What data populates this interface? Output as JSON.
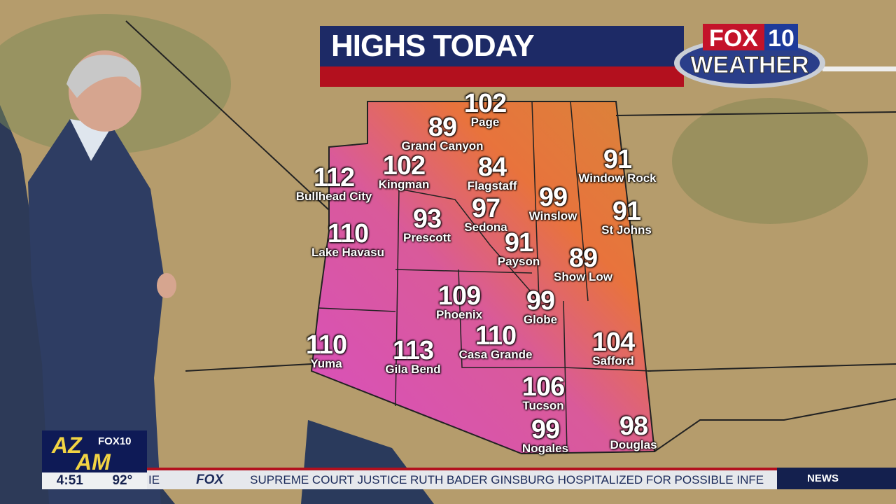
{
  "header": {
    "title": "HIGHS TODAY",
    "logo_text": "FOX 10 WEATHER"
  },
  "colors": {
    "title_blue": "#1d2a66",
    "title_red": "#b3101e",
    "hot": "#d94fbf",
    "warm": "#e87a3c",
    "ticker_bg": "#e6e8ec"
  },
  "cities": [
    {
      "temp": "102",
      "name": "Page"
    },
    {
      "temp": "89",
      "name": "Grand Canyon"
    },
    {
      "temp": "112",
      "name": "Bullhead City"
    },
    {
      "temp": "102",
      "name": "Kingman"
    },
    {
      "temp": "84",
      "name": "Flagstaff"
    },
    {
      "temp": "91",
      "name": "Window Rock"
    },
    {
      "temp": "99",
      "name": "Winslow"
    },
    {
      "temp": "97",
      "name": "Sedona"
    },
    {
      "temp": "93",
      "name": "Prescott"
    },
    {
      "temp": "91",
      "name": "St Johns"
    },
    {
      "temp": "110",
      "name": "Lake Havasu"
    },
    {
      "temp": "91",
      "name": "Payson"
    },
    {
      "temp": "89",
      "name": "Show Low"
    },
    {
      "temp": "109",
      "name": "Phoenix"
    },
    {
      "temp": "99",
      "name": "Globe"
    },
    {
      "temp": "110",
      "name": "Casa Grande"
    },
    {
      "temp": "104",
      "name": "Safford"
    },
    {
      "temp": "110",
      "name": "Yuma"
    },
    {
      "temp": "113",
      "name": "Gila Bend"
    },
    {
      "temp": "106",
      "name": "Tucson"
    },
    {
      "temp": "99",
      "name": "Nogales"
    },
    {
      "temp": "98",
      "name": "Douglas"
    }
  ],
  "bug": {
    "logo_text": "AZ AM FOX10",
    "time": "4:51",
    "temp": "92°"
  },
  "ticker": {
    "lead": "IE",
    "network": "FOX",
    "headline": "SUPREME  COURT  JUSTICE  RUTH  BADER  GINSBURG  HOSPITALIZED  FOR  POSSIBLE  INFE",
    "section": "NEWS"
  }
}
